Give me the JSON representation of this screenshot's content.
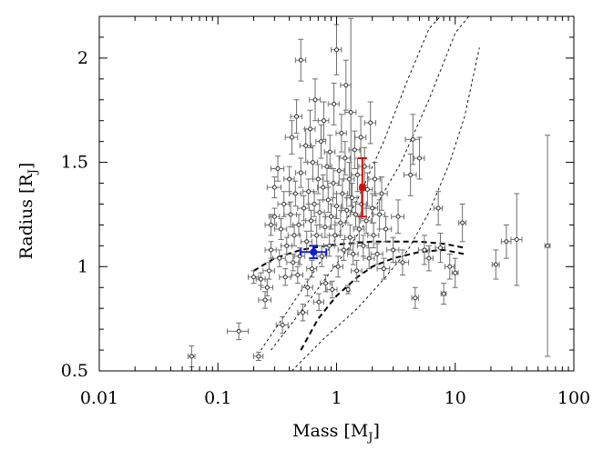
{
  "chart_data": {
    "type": "scatter",
    "title": "",
    "xlabel": "Mass [M",
    "xlabel_sub": "J",
    "xlabel_end": "]",
    "ylabel": "Radius [R",
    "ylabel_sub": "J",
    "ylabel_end": "]",
    "x_scale": "log",
    "xlim": [
      0.01,
      100
    ],
    "ylim": [
      0.5,
      2.2
    ],
    "x_ticks": [
      0.01,
      0.1,
      1,
      10,
      100
    ],
    "x_tick_labels": [
      "0.01",
      "0.1",
      "1",
      "10",
      "100"
    ],
    "y_ticks": [
      0.5,
      1,
      1.5,
      2
    ],
    "y_tick_labels": [
      "0.5",
      "1",
      "1.5",
      "2"
    ],
    "grid": false,
    "legend": "none",
    "colors": {
      "known_planets": "#6e6e6e",
      "highlight_red": "#d01010",
      "highlight_blue": "#1020d0",
      "models": "#000000"
    },
    "highlighted_planets": [
      {
        "x": 1.65,
        "y": 1.38,
        "xerr": [
          0.06,
          0.06
        ],
        "yerr": [
          0.14,
          0.14
        ],
        "color": "#d01010"
      },
      {
        "x": 0.64,
        "y": 1.07,
        "xerr": [
          0.14,
          0.18
        ],
        "yerr": [
          0.03,
          0.03
        ],
        "color": "#1020d0"
      }
    ],
    "points": [
      [
        0.06,
        0.57,
        0.004,
        0.05
      ],
      [
        0.15,
        0.69,
        0.03,
        0.04
      ],
      [
        0.22,
        0.57,
        0.02,
        0.02
      ],
      [
        0.2,
        0.95,
        0.02,
        0.03
      ],
      [
        0.23,
        0.94,
        0.02,
        0.03
      ],
      [
        0.25,
        0.84,
        0.03,
        0.04
      ],
      [
        0.26,
        0.9,
        0.03,
        0.04
      ],
      [
        0.27,
        0.98,
        0.03,
        0.04
      ],
      [
        0.28,
        1.08,
        0.03,
        0.04
      ],
      [
        0.28,
        1.2,
        0.03,
        0.05
      ],
      [
        0.3,
        1.24,
        0.03,
        0.04
      ],
      [
        0.3,
        1.38,
        0.04,
        0.05
      ],
      [
        0.32,
        1.47,
        0.04,
        0.06
      ],
      [
        0.33,
        1.04,
        0.04,
        0.04
      ],
      [
        0.34,
        1.18,
        0.04,
        0.05
      ],
      [
        0.35,
        0.72,
        0.04,
        0.04
      ],
      [
        0.36,
        1.3,
        0.04,
        0.06
      ],
      [
        0.37,
        0.95,
        0.04,
        0.04
      ],
      [
        0.38,
        1.1,
        0.04,
        0.04
      ],
      [
        0.4,
        1.42,
        0.04,
        0.06
      ],
      [
        0.41,
        1.25,
        0.05,
        0.06
      ],
      [
        0.42,
        1.62,
        0.05,
        0.08
      ],
      [
        0.43,
        1.02,
        0.05,
        0.04
      ],
      [
        0.44,
        1.15,
        0.05,
        0.05
      ],
      [
        0.45,
        1.35,
        0.05,
        0.06
      ],
      [
        0.46,
        1.72,
        0.05,
        0.08
      ],
      [
        0.47,
        0.96,
        0.05,
        0.04
      ],
      [
        0.48,
        1.2,
        0.05,
        0.05
      ],
      [
        0.49,
        1.05,
        0.05,
        0.04
      ],
      [
        0.5,
        1.45,
        0.05,
        0.07
      ],
      [
        0.5,
        1.99,
        0.05,
        0.1
      ],
      [
        0.52,
        0.78,
        0.05,
        0.04
      ],
      [
        0.53,
        1.28,
        0.06,
        0.06
      ],
      [
        0.55,
        1.58,
        0.06,
        0.08
      ],
      [
        0.56,
        1.12,
        0.06,
        0.05
      ],
      [
        0.57,
        0.9,
        0.06,
        0.04
      ],
      [
        0.58,
        1.36,
        0.06,
        0.06
      ],
      [
        0.6,
        1.66,
        0.06,
        0.09
      ],
      [
        0.61,
        1.22,
        0.06,
        0.05
      ],
      [
        0.62,
        0.99,
        0.06,
        0.04
      ],
      [
        0.63,
        1.5,
        0.06,
        0.08
      ],
      [
        0.65,
        1.3,
        0.07,
        0.06
      ],
      [
        0.66,
        1.8,
        0.07,
        0.1
      ],
      [
        0.68,
        1.15,
        0.07,
        0.05
      ],
      [
        0.7,
        1.42,
        0.07,
        0.07
      ],
      [
        0.71,
        0.83,
        0.07,
        0.04
      ],
      [
        0.72,
        1.26,
        0.07,
        0.06
      ],
      [
        0.74,
        1.6,
        0.07,
        0.08
      ],
      [
        0.75,
        1.05,
        0.07,
        0.05
      ],
      [
        0.77,
        1.38,
        0.08,
        0.06
      ],
      [
        0.78,
        1.7,
        0.08,
        0.09
      ],
      [
        0.8,
        1.19,
        0.08,
        0.05
      ],
      [
        0.81,
        0.92,
        0.08,
        0.04
      ],
      [
        0.83,
        1.48,
        0.08,
        0.07
      ],
      [
        0.85,
        1.32,
        0.08,
        0.06
      ],
      [
        0.87,
        1.1,
        0.09,
        0.05
      ],
      [
        0.88,
        1.55,
        0.09,
        0.08
      ],
      [
        0.9,
        1.24,
        0.09,
        0.06
      ],
      [
        0.92,
        0.89,
        0.09,
        0.04
      ],
      [
        0.94,
        1.4,
        0.1,
        0.07
      ],
      [
        0.95,
        1.78,
        0.1,
        0.1
      ],
      [
        0.97,
        1.15,
        0.1,
        0.05
      ],
      [
        1.0,
        2.04,
        0.1,
        0.12
      ],
      [
        1.0,
        1.29,
        0.1,
        0.06
      ],
      [
        1.03,
        1.0,
        0.1,
        0.05
      ],
      [
        1.05,
        1.46,
        0.11,
        0.07
      ],
      [
        1.08,
        1.21,
        0.11,
        0.06
      ],
      [
        1.1,
        1.64,
        0.11,
        0.09
      ],
      [
        1.12,
        1.35,
        0.12,
        0.07
      ],
      [
        1.15,
        1.08,
        0.12,
        0.05
      ],
      [
        1.18,
        1.52,
        0.12,
        0.08
      ],
      [
        1.2,
        1.87,
        0.12,
        0.12
      ],
      [
        1.22,
        1.27,
        0.12,
        0.06
      ],
      [
        1.25,
        0.89,
        0.03,
        0.02
      ],
      [
        1.28,
        1.42,
        0.13,
        0.08
      ],
      [
        1.3,
        1.14,
        0.13,
        0.06
      ],
      [
        1.32,
        1.74,
        0.14,
        0.45
      ],
      [
        1.35,
        1.33,
        0.14,
        0.07
      ],
      [
        1.38,
        1.06,
        0.14,
        0.05
      ],
      [
        1.42,
        1.56,
        0.15,
        0.09
      ],
      [
        1.45,
        1.25,
        0.15,
        0.06
      ],
      [
        1.48,
        0.98,
        0.15,
        0.05
      ],
      [
        1.5,
        1.44,
        0.16,
        0.08
      ],
      [
        1.55,
        1.18,
        0.16,
        0.06
      ],
      [
        1.6,
        1.62,
        0.17,
        0.1
      ],
      [
        1.62,
        1.3,
        0.17,
        0.07
      ],
      [
        1.68,
        1.1,
        0.18,
        0.05
      ],
      [
        1.72,
        1.48,
        0.18,
        0.09
      ],
      [
        1.78,
        1.22,
        0.19,
        0.06
      ],
      [
        1.82,
        1.37,
        0.19,
        0.08
      ],
      [
        1.88,
        1.04,
        0.2,
        0.05
      ],
      [
        1.93,
        1.69,
        0.21,
        0.1
      ],
      [
        2.0,
        1.28,
        0.22,
        0.07
      ],
      [
        2.05,
        1.15,
        0.22,
        0.06
      ],
      [
        2.1,
        1.42,
        0.23,
        0.08
      ],
      [
        2.2,
        1.06,
        0.25,
        0.05
      ],
      [
        2.3,
        1.25,
        0.26,
        0.07
      ],
      [
        2.4,
        1.35,
        0.28,
        0.08
      ],
      [
        2.5,
        0.99,
        0.3,
        0.05
      ],
      [
        2.6,
        1.18,
        0.3,
        0.06
      ],
      [
        3.0,
        1.08,
        0.35,
        0.06
      ],
      [
        3.3,
        1.24,
        0.4,
        0.08
      ],
      [
        3.6,
        1.02,
        0.45,
        0.06
      ],
      [
        4.2,
        1.44,
        0.5,
        0.1
      ],
      [
        4.4,
        1.61,
        0.6,
        0.12
      ],
      [
        4.6,
        0.85,
        0.3,
        0.05
      ],
      [
        5.0,
        1.52,
        0.5,
        0.1
      ],
      [
        5.5,
        1.08,
        0.6,
        0.07
      ],
      [
        6.0,
        1.04,
        0.5,
        0.06
      ],
      [
        7.2,
        1.28,
        0.6,
        0.08
      ],
      [
        7.5,
        1.09,
        0.7,
        0.07
      ],
      [
        8.0,
        0.87,
        0.4,
        0.05
      ],
      [
        9.0,
        1.0,
        0.8,
        0.06
      ],
      [
        10.0,
        0.97,
        0.6,
        0.07
      ],
      [
        11.5,
        1.21,
        0.8,
        0.09
      ],
      [
        22.0,
        1.01,
        1.5,
        0.07
      ],
      [
        27.0,
        1.12,
        2.5,
        0.08
      ],
      [
        33.0,
        1.13,
        3.5,
        0.22
      ],
      [
        60.0,
        1.1,
        3.0,
        0.53
      ]
    ],
    "model_curves": [
      {
        "style": "thick-dashed",
        "x": [
          0.2,
          0.3,
          0.5,
          0.8,
          1.2,
          2,
          3,
          5,
          8,
          12
        ],
        "y": [
          0.98,
          1.04,
          1.08,
          1.1,
          1.11,
          1.12,
          1.12,
          1.12,
          1.11,
          1.09
        ]
      },
      {
        "style": "thick-dashed",
        "x": [
          0.5,
          0.7,
          1,
          1.5,
          2,
          3,
          5,
          8,
          12
        ],
        "y": [
          0.6,
          0.75,
          0.86,
          0.95,
          1.0,
          1.04,
          1.07,
          1.08,
          1.06
        ]
      },
      {
        "style": "thin-dotted",
        "x": [
          0.23,
          0.4,
          0.6,
          1,
          1.5,
          2.5,
          4,
          6,
          7.5
        ],
        "y": [
          0.6,
          0.8,
          0.95,
          1.14,
          1.32,
          1.6,
          1.9,
          2.14,
          2.2
        ]
      },
      {
        "style": "thin-dotted",
        "x": [
          0.28,
          0.45,
          0.8,
          1.3,
          2,
          3.5,
          6,
          10,
          13
        ],
        "y": [
          0.6,
          0.75,
          0.94,
          1.1,
          1.26,
          1.5,
          1.8,
          2.12,
          2.2
        ]
      },
      {
        "style": "thin-dotted",
        "x": [
          0.42,
          0.8,
          1.5,
          2.5,
          4,
          6,
          9,
          12,
          16
        ],
        "y": [
          0.5,
          0.66,
          0.8,
          0.94,
          1.08,
          1.26,
          1.5,
          1.72,
          2.05
        ]
      }
    ]
  }
}
